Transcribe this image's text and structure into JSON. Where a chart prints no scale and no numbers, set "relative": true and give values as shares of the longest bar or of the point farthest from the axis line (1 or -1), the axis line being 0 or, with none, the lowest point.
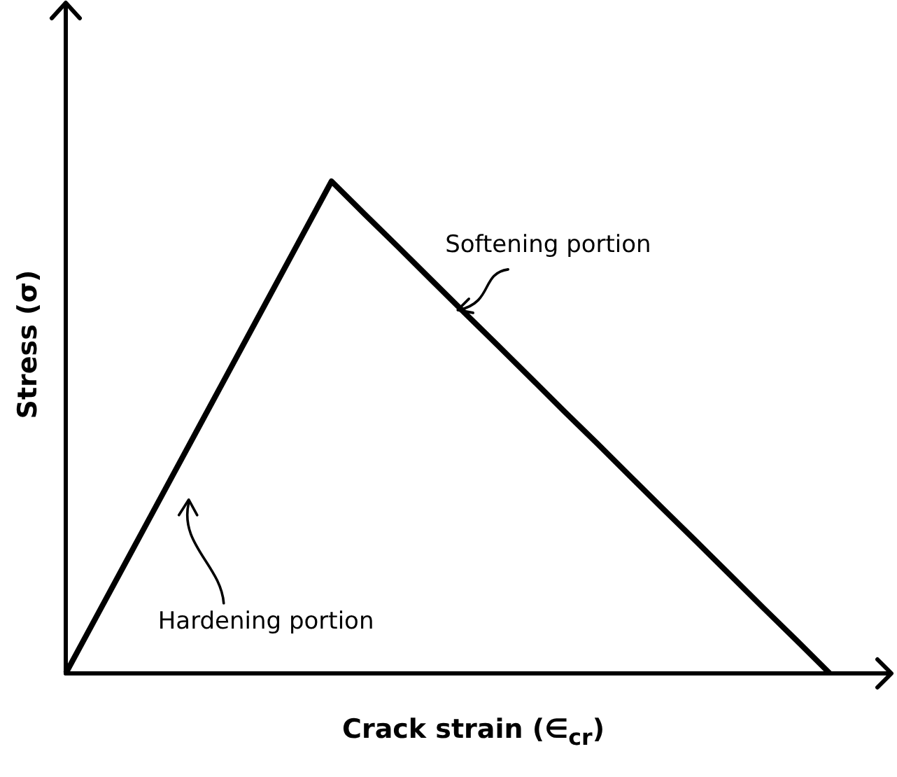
{
  "chart_data": {
    "type": "line",
    "relative": true,
    "xlabel": "Crack strain (∈$_{cr}$)",
    "ylabel": "Stress (σ)",
    "categories": [
      null,
      null,
      null,
      null,
      null,
      null,
      null,
      null,
      null,
      null,
      null,
      null,
      null,
      null,
      null,
      null,
      null,
      null,
      null,
      null,
      null,
      null,
      null,
      null
    ],
    "series": [
      {
        "color": "#000000",
        "values": [
          0,
          0.125,
          0.25,
          0.375,
          0.5,
          0.625,
          0.75,
          0.875,
          1,
          0.933,
          0.867,
          0.8,
          0.733,
          0.667,
          0.6,
          0.533,
          0.467,
          0.4,
          0.333,
          0.267,
          0.2,
          0.133,
          0.067,
          0
        ]
      }
    ],
    "marker": "none",
    "line_style": "solid",
    "annotations": [
      "Softening portion",
      "Hardening portion"
    ]
  }
}
